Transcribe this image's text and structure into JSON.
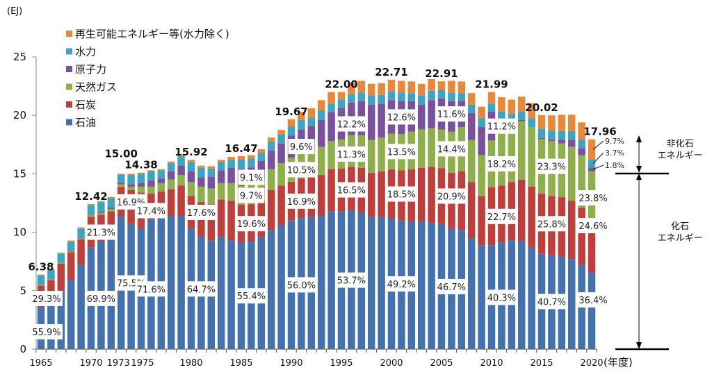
{
  "chart_data": {
    "type": "bar",
    "stacked": true,
    "unit_label": "(EJ)",
    "xlabel_suffix": "(年度)",
    "ylim": [
      0,
      25
    ],
    "yticks": [
      0,
      5,
      10,
      15,
      20,
      25
    ],
    "xtick_labels": [
      {
        "year": 1965,
        "label": "1965"
      },
      {
        "year": 1970,
        "label": "1970"
      },
      {
        "year": 1973,
        "label": "1973"
      },
      {
        "year": 1975,
        "label": "1975"
      },
      {
        "year": 1980,
        "label": "1980"
      },
      {
        "year": 1985,
        "label": "1985"
      },
      {
        "year": 1990,
        "label": "1990"
      },
      {
        "year": 1995,
        "label": "1995"
      },
      {
        "year": 2000,
        "label": "2000"
      },
      {
        "year": 2005,
        "label": "2005"
      },
      {
        "year": 2010,
        "label": "2010"
      },
      {
        "year": 2015,
        "label": "2015"
      },
      {
        "year": 2020,
        "label": "2020"
      }
    ],
    "legend": [
      {
        "key": "renew",
        "label": "再生可能エネルギー等(水力除く)",
        "color": "#E8883A"
      },
      {
        "key": "hydro",
        "label": "水力",
        "color": "#3FA3C2"
      },
      {
        "key": "nuclear",
        "label": "原子力",
        "color": "#7A519F"
      },
      {
        "key": "gas",
        "label": "天然ガス",
        "color": "#8DB04A"
      },
      {
        "key": "coal",
        "label": "石炭",
        "color": "#BE3F3C"
      },
      {
        "key": "oil",
        "label": "石油",
        "color": "#4472AE"
      }
    ],
    "stack_order": [
      "oil",
      "coal",
      "gas",
      "nuclear",
      "hydro",
      "renew"
    ],
    "x": [
      1965,
      1966,
      1967,
      1968,
      1969,
      1970,
      1971,
      1972,
      1973,
      1974,
      1975,
      1976,
      1977,
      1978,
      1979,
      1980,
      1981,
      1982,
      1983,
      1984,
      1985,
      1986,
      1987,
      1988,
      1989,
      1990,
      1991,
      1992,
      1993,
      1994,
      1995,
      1996,
      1997,
      1998,
      1999,
      2000,
      2001,
      2002,
      2003,
      2004,
      2005,
      2006,
      2007,
      2008,
      2009,
      2010,
      2011,
      2012,
      2013,
      2014,
      2015,
      2016,
      2017,
      2018,
      2019,
      2020
    ],
    "series": [
      {
        "key": "oil",
        "name": "石油",
        "values": [
          3.57,
          3.9,
          5.0,
          5.9,
          7.2,
          8.68,
          9.2,
          9.6,
          11.33,
          10.7,
          10.3,
          11.1,
          11.3,
          11.4,
          11.4,
          10.3,
          9.6,
          9.3,
          9.6,
          9.3,
          9.12,
          9.2,
          9.6,
          10.2,
          10.6,
          11.0,
          11.2,
          11.3,
          11.4,
          11.8,
          11.81,
          11.9,
          11.7,
          11.3,
          11.3,
          11.17,
          11.0,
          10.9,
          10.9,
          10.8,
          10.7,
          10.3,
          10.2,
          9.5,
          8.9,
          8.86,
          9.1,
          9.3,
          9.2,
          8.7,
          8.15,
          8.0,
          7.9,
          7.7,
          7.2,
          6.54
        ]
      },
      {
        "key": "coal",
        "name": "石炭",
        "values": [
          1.87,
          2.0,
          2.3,
          2.4,
          2.2,
          2.65,
          2.3,
          2.2,
          2.54,
          2.9,
          3.1,
          2.2,
          2.2,
          2.3,
          2.6,
          2.8,
          3.0,
          3.1,
          3.2,
          3.4,
          3.23,
          3.2,
          3.2,
          3.4,
          3.4,
          3.32,
          3.4,
          3.4,
          3.5,
          3.6,
          3.63,
          3.7,
          3.8,
          3.8,
          3.9,
          4.2,
          4.3,
          4.5,
          4.6,
          4.8,
          4.79,
          4.8,
          5.0,
          4.8,
          4.2,
          4.99,
          4.9,
          5.0,
          5.3,
          5.2,
          5.16,
          5.1,
          5.1,
          5.0,
          4.9,
          4.42
        ]
      },
      {
        "key": "gas",
        "name": "天然ガス",
        "values": [
          0.07,
          0.07,
          0.08,
          0.08,
          0.1,
          0.15,
          0.17,
          0.2,
          0.22,
          0.3,
          0.5,
          0.6,
          0.7,
          0.8,
          0.9,
          1.2,
          1.3,
          1.35,
          1.4,
          1.5,
          1.6,
          1.65,
          1.7,
          1.8,
          1.9,
          2.07,
          2.2,
          2.3,
          2.4,
          2.4,
          2.49,
          2.7,
          2.8,
          2.8,
          2.9,
          3.07,
          3.1,
          3.2,
          3.3,
          3.3,
          3.3,
          3.5,
          3.8,
          3.6,
          3.5,
          4.0,
          4.6,
          5.0,
          5.0,
          5.1,
          4.66,
          4.7,
          4.6,
          4.6,
          4.5,
          4.27
        ]
      },
      {
        "key": "nuclear",
        "name": "原子力",
        "values": [
          0.0,
          0.0,
          0.0,
          0.01,
          0.02,
          0.05,
          0.1,
          0.12,
          0.15,
          0.2,
          0.3,
          0.5,
          0.4,
          0.7,
          0.8,
          0.9,
          0.8,
          1.0,
          1.1,
          1.3,
          1.5,
          1.5,
          1.6,
          1.6,
          1.7,
          1.89,
          2.0,
          2.1,
          2.3,
          2.5,
          2.68,
          2.8,
          2.9,
          3.0,
          2.9,
          2.86,
          2.8,
          2.6,
          2.1,
          2.4,
          2.66,
          2.6,
          2.2,
          2.3,
          2.4,
          2.46,
          1.0,
          0.15,
          0.1,
          0.0,
          0.1,
          0.15,
          0.3,
          0.6,
          0.6,
          0.32
        ]
      },
      {
        "key": "hydro",
        "name": "水力",
        "values": [
          0.8,
          0.8,
          0.8,
          0.8,
          0.8,
          0.8,
          0.8,
          0.8,
          0.7,
          0.8,
          0.8,
          0.8,
          0.7,
          0.7,
          0.8,
          0.8,
          0.8,
          0.7,
          0.7,
          0.7,
          0.75,
          0.75,
          0.7,
          0.75,
          0.75,
          0.75,
          0.8,
          0.7,
          0.8,
          0.7,
          0.75,
          0.7,
          0.75,
          0.8,
          0.75,
          0.75,
          0.75,
          0.7,
          0.8,
          0.8,
          0.7,
          0.75,
          0.7,
          0.7,
          0.75,
          0.7,
          0.75,
          0.7,
          0.7,
          0.75,
          0.8,
          0.75,
          0.75,
          0.75,
          0.7,
          0.66
        ]
      },
      {
        "key": "renew",
        "name": "再生可能エネルギー等(水力除く)",
        "values": [
          0.07,
          0.07,
          0.07,
          0.1,
          0.1,
          0.09,
          0.1,
          0.1,
          0.06,
          0.1,
          0.1,
          0.1,
          0.1,
          0.15,
          0.15,
          0.2,
          0.2,
          0.2,
          0.2,
          0.25,
          0.31,
          0.3,
          0.3,
          0.35,
          0.4,
          0.64,
          0.7,
          0.8,
          0.9,
          1.0,
          0.64,
          1.0,
          1.0,
          1.0,
          1.0,
          1.0,
          1.0,
          1.0,
          1.0,
          1.0,
          0.76,
          1.0,
          1.0,
          1.0,
          1.0,
          0.98,
          1.2,
          1.2,
          1.3,
          1.3,
          1.15,
          1.3,
          1.4,
          1.4,
          1.5,
          1.74
        ]
      }
    ],
    "totals": [
      {
        "year": 1965,
        "label": "6.38"
      },
      {
        "year": 1970,
        "label": "12.42"
      },
      {
        "year": 1973,
        "label": "15.00"
      },
      {
        "year": 1975,
        "label": "14.38"
      },
      {
        "year": 1980,
        "label": "15.92"
      },
      {
        "year": 1985,
        "label": "16.47"
      },
      {
        "year": 1990,
        "label": "19.67"
      },
      {
        "year": 1995,
        "label": "22.00"
      },
      {
        "year": 2000,
        "label": "22.71"
      },
      {
        "year": 2005,
        "label": "22.91"
      },
      {
        "year": 2010,
        "label": "21.99"
      },
      {
        "year": 2015,
        "label": "20.02"
      },
      {
        "year": 2020,
        "label": "17.96"
      }
    ],
    "percent_labels": [
      {
        "year": 1965,
        "series": "oil",
        "text": "55.9%"
      },
      {
        "year": 1965,
        "series": "coal",
        "text": "29.3%"
      },
      {
        "year": 1970,
        "series": "oil",
        "text": "69.9%"
      },
      {
        "year": 1970,
        "series": "coal",
        "text": "21.3%"
      },
      {
        "year": 1973,
        "series": "oil",
        "text": "75.5%"
      },
      {
        "year": 1973,
        "series": "coal",
        "text": "16.9%"
      },
      {
        "year": 1975,
        "series": "oil",
        "text": "71.6%"
      },
      {
        "year": 1975,
        "series": "coal",
        "text": "17.4%"
      },
      {
        "year": 1980,
        "series": "oil",
        "text": "64.7%"
      },
      {
        "year": 1980,
        "series": "coal",
        "text": "17.6%"
      },
      {
        "year": 1985,
        "series": "oil",
        "text": "55.4%"
      },
      {
        "year": 1985,
        "series": "coal",
        "text": "19.6%"
      },
      {
        "year": 1985,
        "series": "gas",
        "text": "9.7%"
      },
      {
        "year": 1985,
        "series": "nuclear",
        "text": "9.1%"
      },
      {
        "year": 1990,
        "series": "oil",
        "text": "56.0%"
      },
      {
        "year": 1990,
        "series": "coal",
        "text": "16.9%"
      },
      {
        "year": 1990,
        "series": "gas",
        "text": "10.5%"
      },
      {
        "year": 1990,
        "series": "nuclear",
        "text": "9.6%"
      },
      {
        "year": 1995,
        "series": "oil",
        "text": "53.7%"
      },
      {
        "year": 1995,
        "series": "coal",
        "text": "16.5%"
      },
      {
        "year": 1995,
        "series": "gas",
        "text": "11.3%"
      },
      {
        "year": 1995,
        "series": "nuclear",
        "text": "12.2%"
      },
      {
        "year": 2000,
        "series": "oil",
        "text": "49.2%"
      },
      {
        "year": 2000,
        "series": "coal",
        "text": "18.5%"
      },
      {
        "year": 2000,
        "series": "gas",
        "text": "13.5%"
      },
      {
        "year": 2000,
        "series": "nuclear",
        "text": "12.6%"
      },
      {
        "year": 2005,
        "series": "oil",
        "text": "46.7%"
      },
      {
        "year": 2005,
        "series": "coal",
        "text": "20.9%"
      },
      {
        "year": 2005,
        "series": "gas",
        "text": "14.4%"
      },
      {
        "year": 2005,
        "series": "nuclear",
        "text": "11.6%"
      },
      {
        "year": 2010,
        "series": "oil",
        "text": "40.3%"
      },
      {
        "year": 2010,
        "series": "coal",
        "text": "22.7%"
      },
      {
        "year": 2010,
        "series": "gas",
        "text": "18.2%"
      },
      {
        "year": 2010,
        "series": "nuclear",
        "text": "11.2%"
      },
      {
        "year": 2015,
        "series": "oil",
        "text": "40.7%"
      },
      {
        "year": 2015,
        "series": "coal",
        "text": "25.8%"
      },
      {
        "year": 2015,
        "series": "gas",
        "text": "23.3%"
      },
      {
        "year": 2020,
        "series": "oil",
        "text": "36.4%"
      },
      {
        "year": 2020,
        "series": "coal",
        "text": "24.6%"
      },
      {
        "year": 2020,
        "series": "gas",
        "text": "23.8%"
      },
      {
        "year": 2020,
        "series": "nuclear",
        "text": "1.8%"
      },
      {
        "year": 2020,
        "series": "hydro",
        "text": "3.7%"
      },
      {
        "year": 2020,
        "series": "renew",
        "text": "9.7%"
      }
    ],
    "annotations": {
      "non_fossil": "非化石\nエネルギー",
      "fossil": "化石\nエネルギー"
    }
  }
}
